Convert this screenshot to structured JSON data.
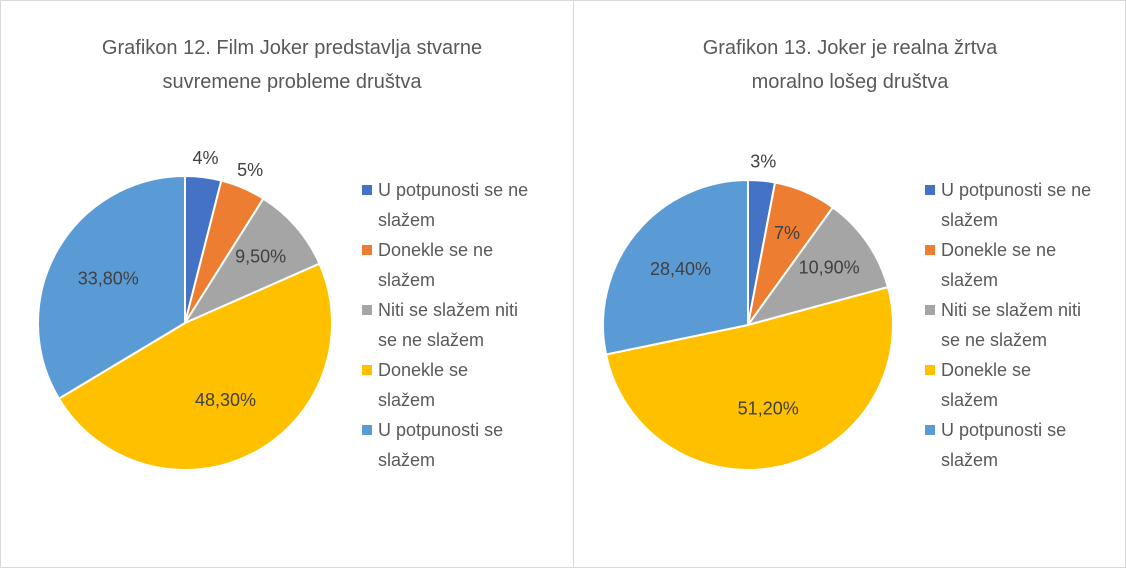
{
  "chart_data": [
    {
      "type": "pie",
      "title": "Grafikon 12. Film Joker predstavlja stvarne suvremene probleme društva",
      "categories": [
        "U potpunosti se ne slažem",
        "Donekle se ne slažem",
        "Niti se slažem niti se ne slažem",
        "Donekle se slažem",
        "U potpunosti se slažem"
      ],
      "values": [
        4,
        5,
        9.5,
        48.3,
        33.8
      ],
      "value_labels": [
        "4%",
        "5%",
        "9,50%",
        "48,30%",
        "33,80%"
      ],
      "colors": [
        "#4472c4",
        "#ed7d31",
        "#a5a5a5",
        "#ffc000",
        "#5b9bd5"
      ],
      "legend": "right"
    },
    {
      "type": "pie",
      "title": "Grafikon 13. Joker je realna žrtva moralno lošeg društva",
      "categories": [
        "U potpunosti se ne slažem",
        "Donekle se ne slažem",
        "Niti se slažem niti se ne slažem",
        "Donekle se slažem",
        "U potpunosti se slažem"
      ],
      "values": [
        3,
        7,
        10.9,
        51.2,
        28.4
      ],
      "value_labels": [
        "3%",
        "7%",
        "10,90%",
        "51,20%",
        "28,40%"
      ],
      "colors": [
        "#4472c4",
        "#ed7d31",
        "#a5a5a5",
        "#ffc000",
        "#5b9bd5"
      ],
      "legend": "right"
    }
  ]
}
